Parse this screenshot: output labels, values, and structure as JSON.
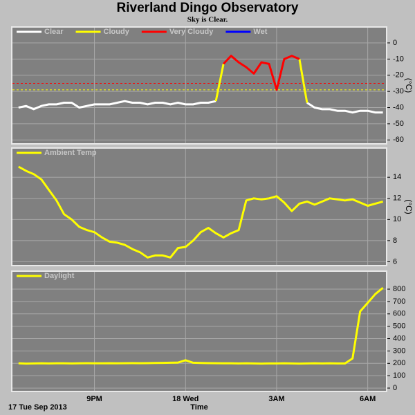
{
  "title": "Riverland Dingo Observatory",
  "subtitle": "Sky is Clear.",
  "chart_data": [
    {
      "type": "line",
      "y_label": "(°C)",
      "x": [
        18.5,
        18.75,
        19,
        19.25,
        19.5,
        19.75,
        20,
        20.25,
        20.5,
        20.75,
        21,
        21.25,
        21.5,
        21.75,
        22,
        22.25,
        22.5,
        22.75,
        23,
        23.25,
        23.5,
        23.75,
        24,
        24.25,
        24.5,
        24.75,
        25,
        25.25,
        25.5,
        25.75,
        26,
        26.25,
        26.5,
        26.75,
        27,
        27.25,
        27.5,
        27.75,
        28,
        28.25,
        28.5,
        28.75,
        29,
        29.25,
        29.5,
        29.75,
        30,
        30.25,
        30.5
      ],
      "xlim": [
        18.3,
        30.6
      ],
      "ylim": [
        -62,
        9.4
      ],
      "yticks": [
        0,
        -10,
        -20,
        -30,
        -40,
        -50,
        -60
      ],
      "thresholds": [
        {
          "value": -25,
          "color": "#ff0000"
        },
        {
          "value": -29,
          "color": "#ffff00"
        }
      ],
      "series": [
        {
          "name": "Clear",
          "color": "#ffffff",
          "values": [
            -40,
            -39,
            -41,
            -39,
            -38,
            -38,
            -37,
            -37,
            -40,
            -39,
            -38,
            -38,
            -38,
            -37,
            -36,
            -37,
            -37,
            -38,
            -37,
            -37,
            -38,
            -37,
            -38,
            -38,
            -37,
            -37,
            -36,
            null,
            null,
            null,
            null,
            null,
            null,
            null,
            null,
            null,
            null,
            null,
            -37,
            -40,
            -41,
            -41,
            -42,
            -42,
            -43,
            -42,
            -42,
            -43,
            -43
          ]
        },
        {
          "name": "Cloudy",
          "color": "#ffff00",
          "values": [
            null,
            null,
            null,
            null,
            null,
            null,
            null,
            null,
            null,
            null,
            null,
            null,
            null,
            null,
            null,
            null,
            null,
            null,
            null,
            null,
            null,
            null,
            null,
            null,
            null,
            null,
            -36,
            -13,
            null,
            null,
            null,
            null,
            null,
            null,
            null,
            null,
            null,
            -10,
            -37,
            null,
            null,
            null,
            null,
            null,
            null,
            null,
            null,
            null,
            null
          ]
        },
        {
          "name": "Very Cloudy",
          "color": "#ff0000",
          "values": [
            null,
            null,
            null,
            null,
            null,
            null,
            null,
            null,
            null,
            null,
            null,
            null,
            null,
            null,
            null,
            null,
            null,
            null,
            null,
            null,
            null,
            null,
            null,
            null,
            null,
            null,
            null,
            -13,
            -8,
            -12,
            -15,
            -19,
            -12,
            -13,
            -29,
            -10,
            -8,
            -10,
            null,
            null,
            null,
            null,
            null,
            null,
            null,
            null,
            null,
            null,
            null
          ]
        },
        {
          "name": "Wet",
          "color": "#0000ff",
          "values": [
            null,
            null,
            null,
            null,
            null,
            null,
            null,
            null,
            null,
            null,
            null,
            null,
            null,
            null,
            null,
            null,
            null,
            null,
            null,
            null,
            null,
            null,
            null,
            null,
            null,
            null,
            null,
            null,
            null,
            null,
            null,
            null,
            null,
            null,
            null,
            null,
            null,
            null,
            null,
            null,
            null,
            null,
            null,
            null,
            null,
            null,
            null,
            null,
            null
          ]
        }
      ]
    },
    {
      "type": "line",
      "y_label": "(°C)",
      "x": [
        18.5,
        18.75,
        19,
        19.25,
        19.5,
        19.75,
        20,
        20.25,
        20.5,
        20.75,
        21,
        21.25,
        21.5,
        21.75,
        22,
        22.25,
        22.5,
        22.75,
        23,
        23.25,
        23.5,
        23.75,
        24,
        24.25,
        24.5,
        24.75,
        25,
        25.25,
        25.5,
        25.75,
        26,
        26.25,
        26.5,
        26.75,
        27,
        27.25,
        27.5,
        27.75,
        28,
        28.25,
        28.5,
        28.75,
        29,
        29.25,
        29.5,
        29.75,
        30,
        30.25,
        30.5
      ],
      "xlim": [
        18.3,
        30.6
      ],
      "ylim": [
        5.7,
        16.7
      ],
      "yticks": [
        6,
        8,
        10,
        12,
        14
      ],
      "series": [
        {
          "name": "Ambient Temp",
          "color": "#ffff00",
          "values": [
            15.0,
            14.6,
            14.3,
            13.8,
            12.8,
            11.8,
            10.5,
            10.0,
            9.3,
            9.0,
            8.8,
            8.3,
            7.9,
            7.8,
            7.6,
            7.2,
            6.9,
            6.4,
            6.6,
            6.6,
            6.4,
            7.3,
            7.4,
            8.0,
            8.8,
            9.2,
            8.7,
            8.3,
            8.7,
            9.0,
            11.8,
            12.0,
            11.9,
            12.0,
            12.2,
            11.6,
            10.8,
            11.5,
            11.7,
            11.4,
            11.7,
            12.0,
            11.9,
            11.8,
            11.9,
            11.6,
            11.3,
            11.5,
            11.7
          ]
        }
      ]
    },
    {
      "type": "line",
      "x_label": "Time",
      "start_label": "17 Tue Sep 2013",
      "x": [
        18.5,
        18.75,
        19,
        19.25,
        19.5,
        19.75,
        20,
        20.25,
        20.5,
        20.75,
        21,
        21.25,
        21.5,
        21.75,
        22,
        22.25,
        22.5,
        22.75,
        23,
        23.25,
        23.5,
        23.75,
        24,
        24.25,
        24.5,
        24.75,
        25,
        25.25,
        25.5,
        25.75,
        26,
        26.25,
        26.5,
        26.75,
        27,
        27.25,
        27.5,
        27.75,
        28,
        28.25,
        28.5,
        28.75,
        29,
        29.25,
        29.5,
        29.75,
        30,
        30.25,
        30.5
      ],
      "xlim": [
        18.3,
        30.6
      ],
      "ylim": [
        -22,
        940
      ],
      "yticks": [
        0,
        100,
        200,
        300,
        400,
        500,
        600,
        700,
        800
      ],
      "xticks": [
        {
          "value": 21,
          "label": "9PM"
        },
        {
          "value": 24,
          "label": "18 Wed"
        },
        {
          "value": 27,
          "label": "3AM"
        },
        {
          "value": 30,
          "label": "6AM"
        }
      ],
      "series": [
        {
          "name": "Daylight",
          "color": "#ffff00",
          "values": [
            200,
            198,
            199,
            200,
            199,
            200,
            200,
            199,
            200,
            201,
            200,
            200,
            201,
            200,
            201,
            202,
            201,
            202,
            203,
            204,
            205,
            206,
            225,
            205,
            203,
            202,
            201,
            200,
            200,
            199,
            200,
            199,
            198,
            199,
            199,
            200,
            199,
            198,
            199,
            200,
            199,
            200,
            199,
            199,
            240,
            620,
            690,
            760,
            810
          ]
        }
      ]
    }
  ]
}
